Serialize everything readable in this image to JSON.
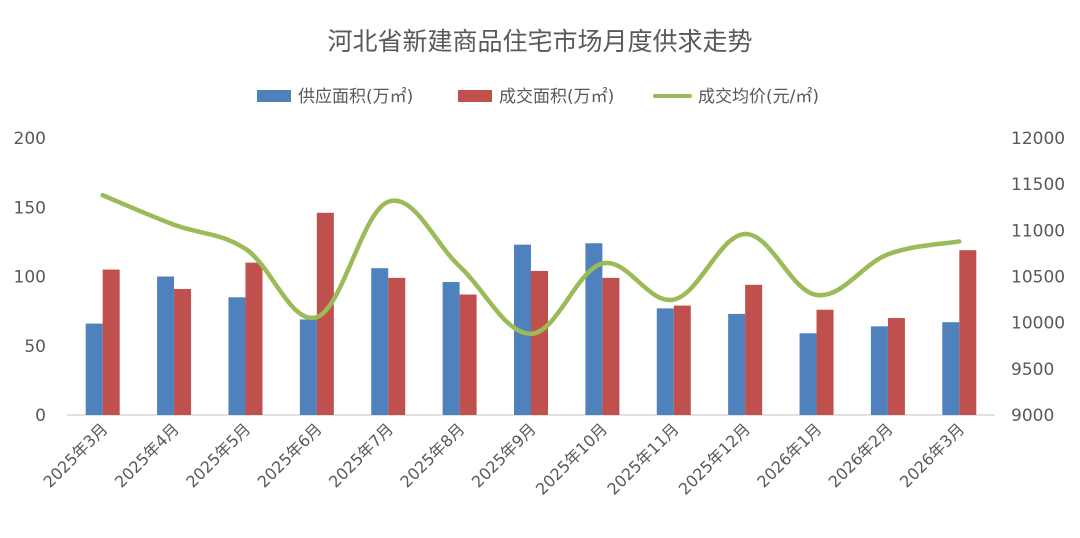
{
  "chart_data": {
    "type": "bar",
    "title": "河北省新建商品住宅市场月度供求走势",
    "categories": [
      "2025年3月",
      "2025年4月",
      "2025年5月",
      "2025年6月",
      "2025年7月",
      "2025年8月",
      "2025年9月",
      "2025年10月",
      "2025年11月",
      "2025年12月",
      "2026年1月",
      "2026年2月",
      "2026年3月"
    ],
    "series": [
      {
        "name": "供应面积(万㎡)",
        "type": "bar",
        "axis": "left",
        "color": "#4F81BD",
        "values": [
          66,
          100,
          85,
          69,
          106,
          96,
          123,
          124,
          77,
          73,
          59,
          64,
          67
        ]
      },
      {
        "name": "成交面积(万㎡)",
        "type": "bar",
        "axis": "left",
        "color": "#C0504D",
        "values": [
          105,
          91,
          110,
          146,
          99,
          87,
          104,
          99,
          79,
          94,
          76,
          70,
          119
        ]
      },
      {
        "name": "成交均价(元/㎡)",
        "type": "line",
        "axis": "right",
        "color": "#9BBB59",
        "values": [
          11380,
          11060,
          10800,
          10060,
          11310,
          10610,
          9880,
          10640,
          10250,
          10960,
          10300,
          10740,
          10880
        ]
      }
    ],
    "y_left": {
      "min": 0,
      "max": 200,
      "ticks": [
        0,
        50,
        100,
        150,
        200
      ]
    },
    "y_right": {
      "min": 9000,
      "max": 12000,
      "ticks": [
        9000,
        9500,
        10000,
        10500,
        11000,
        11500,
        12000
      ]
    },
    "legend_position": "top",
    "grid": false
  }
}
